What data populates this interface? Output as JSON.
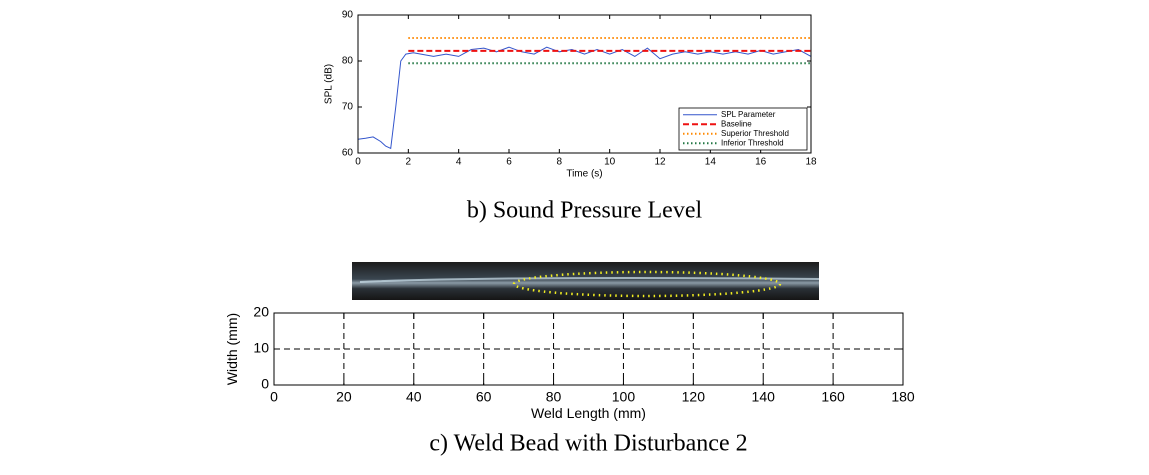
{
  "chart_data": [
    {
      "type": "line",
      "title": "b) Sound Pressure Level",
      "xlabel": "Time (s)",
      "ylabel": "SPL (dB)",
      "xlim": [
        0,
        18
      ],
      "xticks": [
        0,
        2,
        4,
        6,
        8,
        10,
        12,
        14,
        16,
        18
      ],
      "ylim": [
        60,
        90
      ],
      "yticks": [
        60,
        70,
        80,
        90
      ],
      "grid": false,
      "legend": "lower right",
      "series": [
        {
          "name": "SPL Parameter",
          "color": "#3355cc",
          "linestyle": "solid",
          "x": [
            0,
            0.3,
            0.6,
            0.9,
            1.1,
            1.3,
            1.5,
            1.7,
            1.9,
            2.2,
            2.5,
            3,
            3.5,
            4,
            4.5,
            5,
            5.5,
            6,
            6.5,
            7,
            7.5,
            8,
            8.5,
            9,
            9.5,
            10,
            10.5,
            11,
            11.5,
            12,
            12.5,
            13,
            13.5,
            14,
            14.5,
            15,
            15.5,
            16,
            16.5,
            17,
            17.5,
            18
          ],
          "values": [
            63,
            63.2,
            63.5,
            62.5,
            61.5,
            61,
            70,
            80,
            81.5,
            81.8,
            81.5,
            81,
            81.5,
            81,
            82.5,
            82.8,
            82,
            83,
            82,
            81.5,
            83,
            82,
            82.5,
            81.5,
            82.5,
            81.5,
            82.5,
            81,
            82.8,
            80.5,
            81.5,
            82,
            81.5,
            82,
            81.5,
            82,
            81.5,
            82.3,
            81.5,
            82,
            82.5,
            81
          ]
        },
        {
          "name": "Baseline",
          "color": "#ee1111",
          "linestyle": "dashed",
          "x": [
            2,
            18
          ],
          "values": [
            82.2,
            82.2
          ]
        },
        {
          "name": "Superior Threshold",
          "color": "#ff8800",
          "linestyle": "dotted",
          "x": [
            2,
            18
          ],
          "values": [
            85,
            85
          ]
        },
        {
          "name": "Inferior Threshold",
          "color": "#227744",
          "linestyle": "dotted",
          "x": [
            2,
            18
          ],
          "values": [
            79.5,
            79.5
          ]
        }
      ]
    },
    {
      "type": "line",
      "title": "c) Weld Bead with Disturbance 2",
      "xlabel": "Weld Length (mm)",
      "ylabel": "Width (mm)",
      "xlim": [
        0,
        180
      ],
      "xticks": [
        0,
        20,
        40,
        60,
        80,
        100,
        120,
        140,
        160,
        180
      ],
      "ylim": [
        0,
        20
      ],
      "yticks": [
        0,
        10,
        20
      ],
      "grid": true
    }
  ]
}
